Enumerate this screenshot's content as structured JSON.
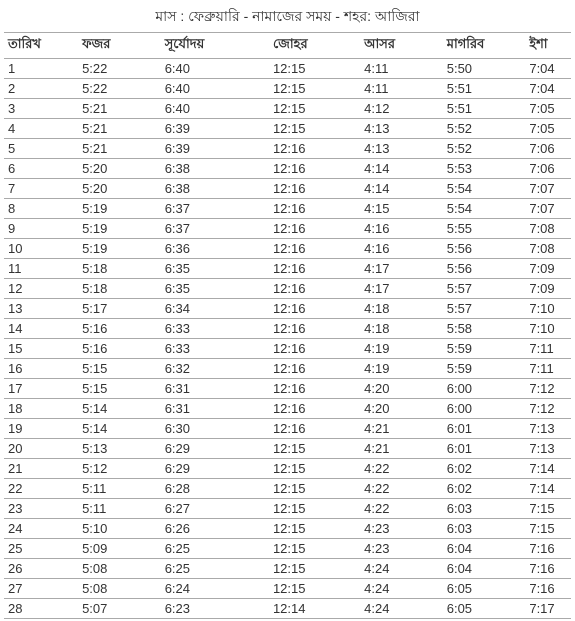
{
  "title": "মাস : ফেব্রুয়ারি - নামাজের সময় - শহর: আজিরা",
  "headers": {
    "date": "তারিখ",
    "fajr": "ফজর",
    "sunrise": "সূর্যোদয়",
    "duhr": "জোহর",
    "asr": "আসর",
    "maghrib": "মাগরিব",
    "isha": "ইশা"
  },
  "rows": [
    {
      "date": "1",
      "fajr": "5:22",
      "sunrise": "6:40",
      "duhr": "12:15",
      "asr": "4:11",
      "maghrib": "5:50",
      "isha": "7:04"
    },
    {
      "date": "2",
      "fajr": "5:22",
      "sunrise": "6:40",
      "duhr": "12:15",
      "asr": "4:11",
      "maghrib": "5:51",
      "isha": "7:04"
    },
    {
      "date": "3",
      "fajr": "5:21",
      "sunrise": "6:40",
      "duhr": "12:15",
      "asr": "4:12",
      "maghrib": "5:51",
      "isha": "7:05"
    },
    {
      "date": "4",
      "fajr": "5:21",
      "sunrise": "6:39",
      "duhr": "12:15",
      "asr": "4:13",
      "maghrib": "5:52",
      "isha": "7:05"
    },
    {
      "date": "5",
      "fajr": "5:21",
      "sunrise": "6:39",
      "duhr": "12:16",
      "asr": "4:13",
      "maghrib": "5:52",
      "isha": "7:06"
    },
    {
      "date": "6",
      "fajr": "5:20",
      "sunrise": "6:38",
      "duhr": "12:16",
      "asr": "4:14",
      "maghrib": "5:53",
      "isha": "7:06"
    },
    {
      "date": "7",
      "fajr": "5:20",
      "sunrise": "6:38",
      "duhr": "12:16",
      "asr": "4:14",
      "maghrib": "5:54",
      "isha": "7:07"
    },
    {
      "date": "8",
      "fajr": "5:19",
      "sunrise": "6:37",
      "duhr": "12:16",
      "asr": "4:15",
      "maghrib": "5:54",
      "isha": "7:07"
    },
    {
      "date": "9",
      "fajr": "5:19",
      "sunrise": "6:37",
      "duhr": "12:16",
      "asr": "4:16",
      "maghrib": "5:55",
      "isha": "7:08"
    },
    {
      "date": "10",
      "fajr": "5:19",
      "sunrise": "6:36",
      "duhr": "12:16",
      "asr": "4:16",
      "maghrib": "5:56",
      "isha": "7:08"
    },
    {
      "date": "11",
      "fajr": "5:18",
      "sunrise": "6:35",
      "duhr": "12:16",
      "asr": "4:17",
      "maghrib": "5:56",
      "isha": "7:09"
    },
    {
      "date": "12",
      "fajr": "5:18",
      "sunrise": "6:35",
      "duhr": "12:16",
      "asr": "4:17",
      "maghrib": "5:57",
      "isha": "7:09"
    },
    {
      "date": "13",
      "fajr": "5:17",
      "sunrise": "6:34",
      "duhr": "12:16",
      "asr": "4:18",
      "maghrib": "5:57",
      "isha": "7:10"
    },
    {
      "date": "14",
      "fajr": "5:16",
      "sunrise": "6:33",
      "duhr": "12:16",
      "asr": "4:18",
      "maghrib": "5:58",
      "isha": "7:10"
    },
    {
      "date": "15",
      "fajr": "5:16",
      "sunrise": "6:33",
      "duhr": "12:16",
      "asr": "4:19",
      "maghrib": "5:59",
      "isha": "7:11"
    },
    {
      "date": "16",
      "fajr": "5:15",
      "sunrise": "6:32",
      "duhr": "12:16",
      "asr": "4:19",
      "maghrib": "5:59",
      "isha": "7:11"
    },
    {
      "date": "17",
      "fajr": "5:15",
      "sunrise": "6:31",
      "duhr": "12:16",
      "asr": "4:20",
      "maghrib": "6:00",
      "isha": "7:12"
    },
    {
      "date": "18",
      "fajr": "5:14",
      "sunrise": "6:31",
      "duhr": "12:16",
      "asr": "4:20",
      "maghrib": "6:00",
      "isha": "7:12"
    },
    {
      "date": "19",
      "fajr": "5:14",
      "sunrise": "6:30",
      "duhr": "12:16",
      "asr": "4:21",
      "maghrib": "6:01",
      "isha": "7:13"
    },
    {
      "date": "20",
      "fajr": "5:13",
      "sunrise": "6:29",
      "duhr": "12:15",
      "asr": "4:21",
      "maghrib": "6:01",
      "isha": "7:13"
    },
    {
      "date": "21",
      "fajr": "5:12",
      "sunrise": "6:29",
      "duhr": "12:15",
      "asr": "4:22",
      "maghrib": "6:02",
      "isha": "7:14"
    },
    {
      "date": "22",
      "fajr": "5:11",
      "sunrise": "6:28",
      "duhr": "12:15",
      "asr": "4:22",
      "maghrib": "6:02",
      "isha": "7:14"
    },
    {
      "date": "23",
      "fajr": "5:11",
      "sunrise": "6:27",
      "duhr": "12:15",
      "asr": "4:22",
      "maghrib": "6:03",
      "isha": "7:15"
    },
    {
      "date": "24",
      "fajr": "5:10",
      "sunrise": "6:26",
      "duhr": "12:15",
      "asr": "4:23",
      "maghrib": "6:03",
      "isha": "7:15"
    },
    {
      "date": "25",
      "fajr": "5:09",
      "sunrise": "6:25",
      "duhr": "12:15",
      "asr": "4:23",
      "maghrib": "6:04",
      "isha": "7:16"
    },
    {
      "date": "26",
      "fajr": "5:08",
      "sunrise": "6:25",
      "duhr": "12:15",
      "asr": "4:24",
      "maghrib": "6:04",
      "isha": "7:16"
    },
    {
      "date": "27",
      "fajr": "5:08",
      "sunrise": "6:24",
      "duhr": "12:15",
      "asr": "4:24",
      "maghrib": "6:05",
      "isha": "7:16"
    },
    {
      "date": "28",
      "fajr": "5:07",
      "sunrise": "6:23",
      "duhr": "12:14",
      "asr": "4:24",
      "maghrib": "6:05",
      "isha": "7:17"
    }
  ]
}
